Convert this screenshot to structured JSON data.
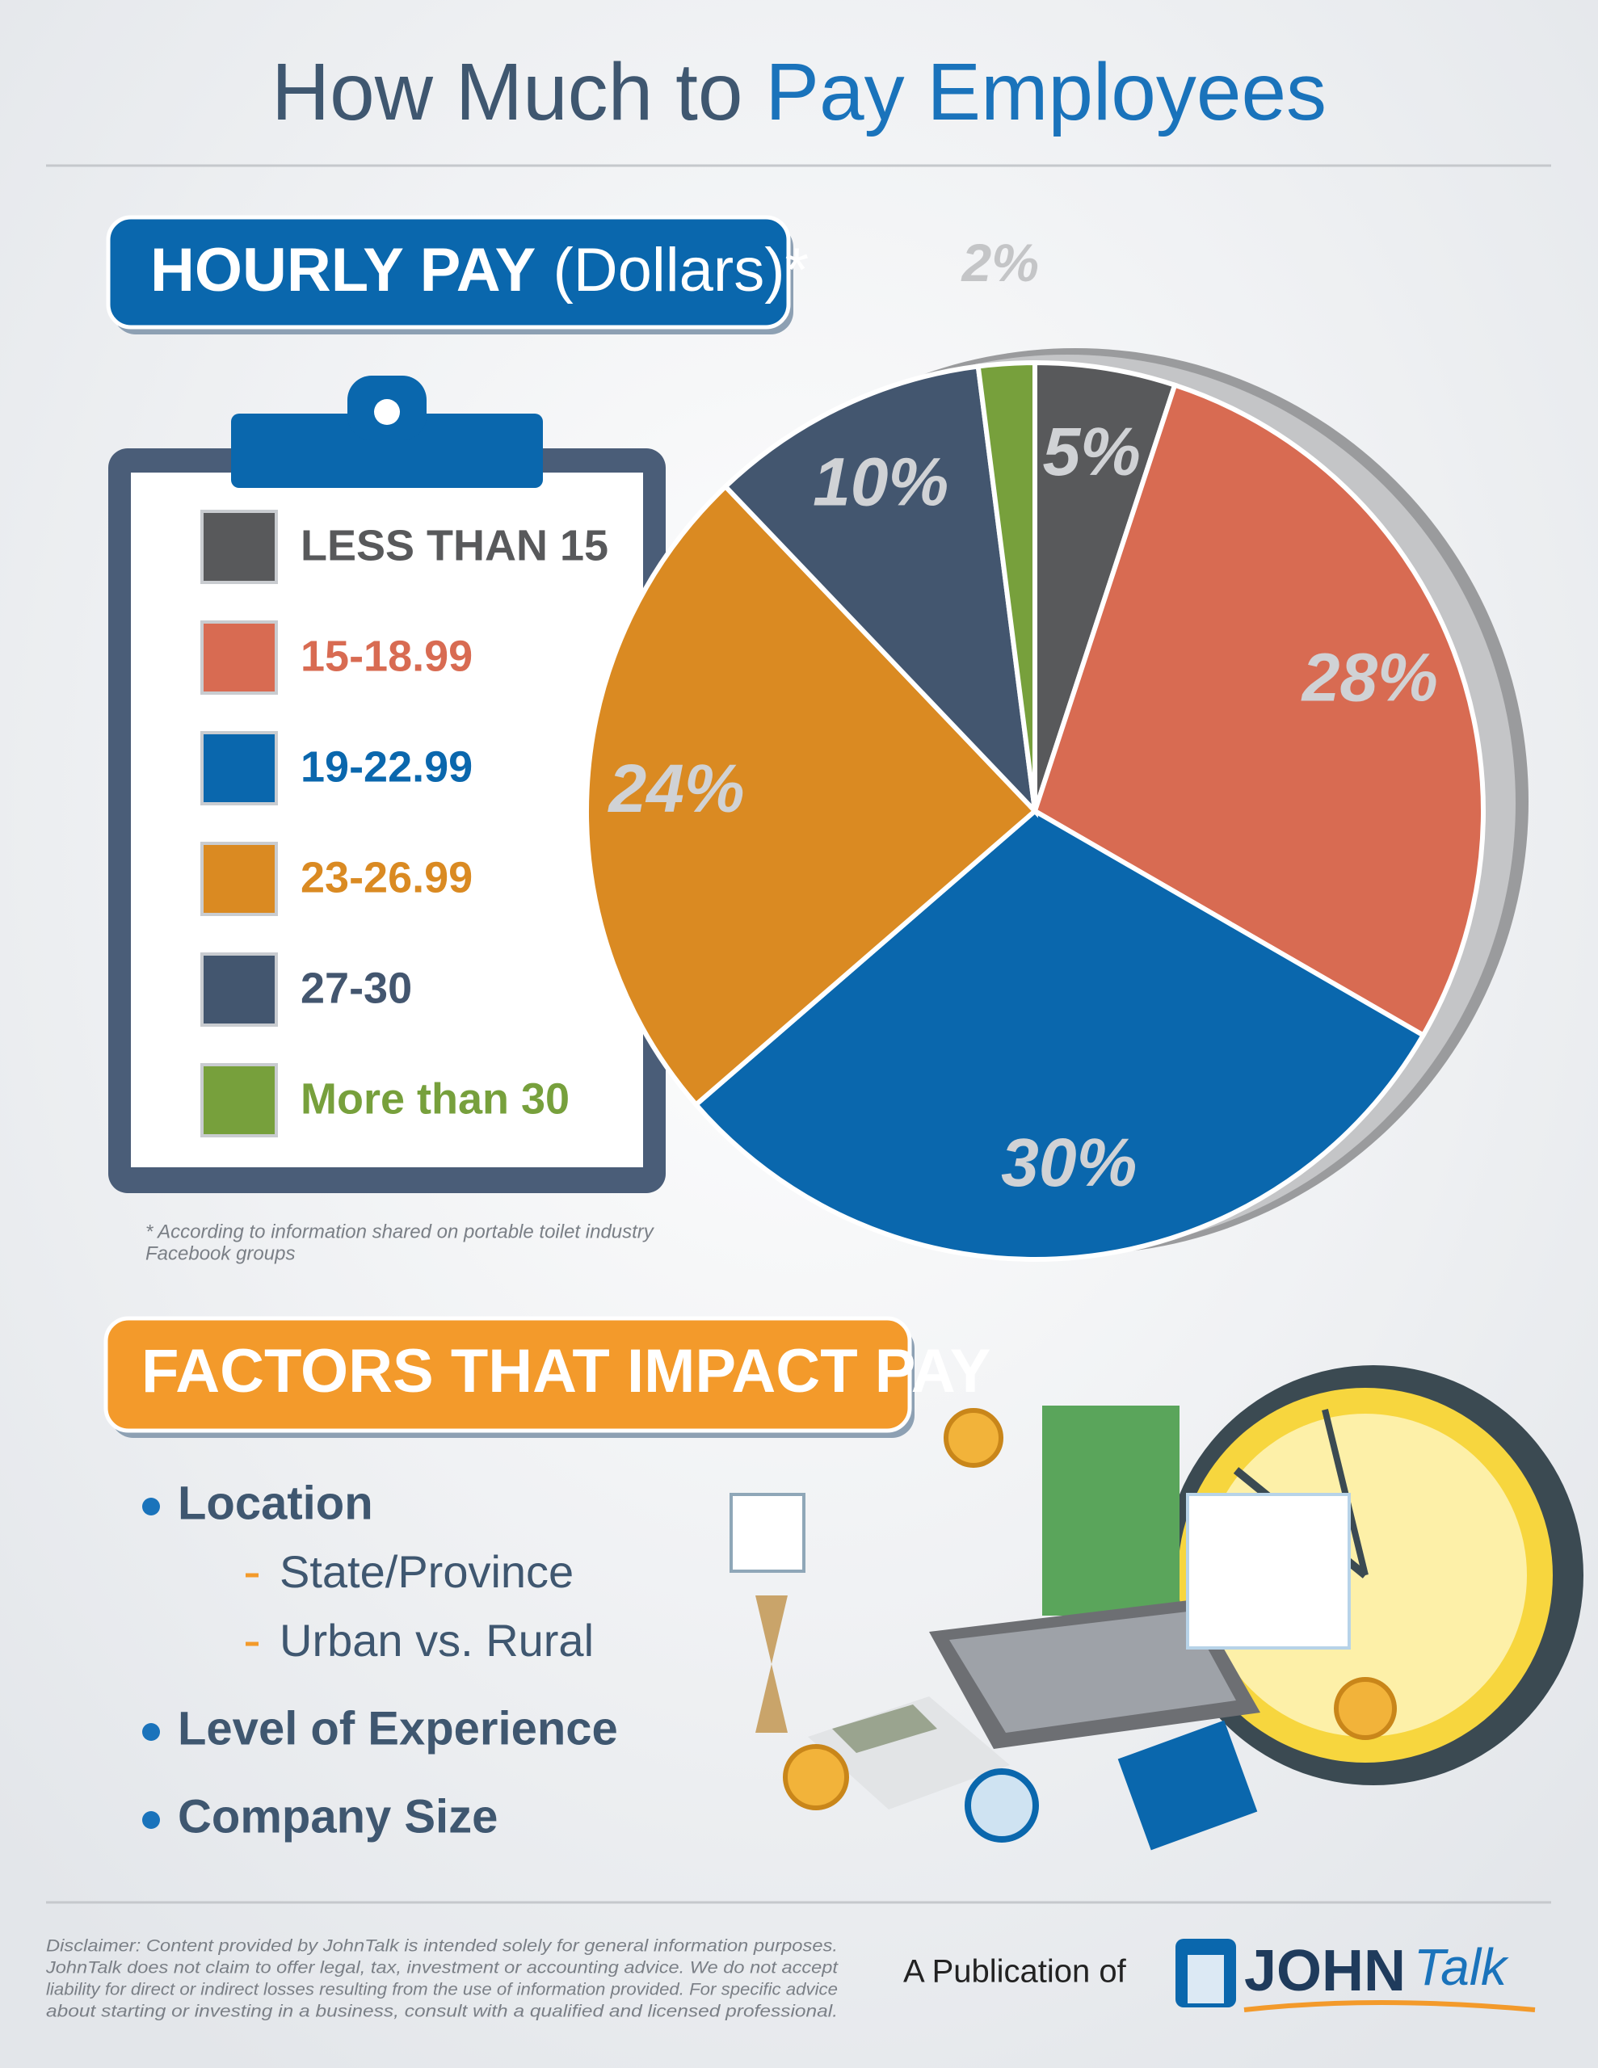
{
  "header": {
    "title_a": "How Much to",
    "title_b": "Pay Employees"
  },
  "chart_data": {
    "type": "pie",
    "title": "HOURLY PAY",
    "subtitle": "(Dollars)*",
    "categories": [
      "LESS THAN 15",
      "15-18.99",
      "19-22.99",
      "23-26.99",
      "27-30",
      "More than 30"
    ],
    "values": [
      5,
      28,
      30,
      24,
      10,
      2
    ],
    "value_labels": [
      "5%",
      "28%",
      "30%",
      "24%",
      "10%",
      "2%"
    ],
    "colors": [
      "#58595b",
      "#d86b52",
      "#0a67ad",
      "#da8a22",
      "#43566f",
      "#77a03c"
    ],
    "footnote": [
      "* According to information shared on portable toilet industry",
      "Facebook groups"
    ]
  },
  "factors": {
    "title": "FACTORS THAT IMPACT PAY",
    "items": [
      {
        "text": "Location",
        "subitems": [
          "State/Province",
          "Urban vs. Rural"
        ]
      },
      {
        "text": "Level of Experience"
      },
      {
        "text": "Company Size"
      }
    ]
  },
  "footer": {
    "disclaimer": [
      "Disclaimer: Content provided by JohnTalk is intended solely for general information purposes.",
      "JohnTalk does not claim to offer legal, tax, investment or accounting advice. We do not accept",
      "liability for direct or indirect losses resulting from the use of information provided. For specific advice",
      "about starting or investing in a business, consult with a qualified and licensed professional."
    ],
    "publication": "A Publication of",
    "logo_john": "JOHN",
    "logo_talk": "Talk"
  }
}
